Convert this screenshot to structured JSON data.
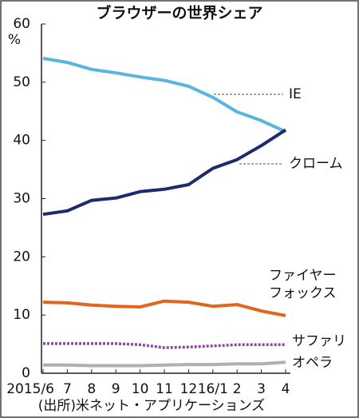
{
  "chart_data": {
    "type": "line",
    "title": "ブラウザーの世界シェア",
    "y_unit": "%",
    "source": "(出所)米ネット・アプリケーションズ",
    "categories": [
      "2015/6",
      "7",
      "8",
      "9",
      "10",
      "11",
      "12",
      "16/1",
      "2",
      "3",
      "4"
    ],
    "series": [
      {
        "name": "IE",
        "color": "#5ab4e0",
        "values": [
          54.1,
          53.4,
          52.2,
          51.6,
          50.9,
          50.3,
          49.3,
          47.4,
          44.9,
          43.4,
          41.5
        ]
      },
      {
        "name": "クローム",
        "color": "#1c2a6e",
        "values": [
          27.3,
          27.9,
          29.7,
          30.1,
          31.2,
          31.6,
          32.4,
          35.2,
          36.7,
          39.1,
          41.8
        ]
      },
      {
        "name": "ファイヤーフォックス",
        "color": "#e0661e",
        "values": [
          12.2,
          12.1,
          11.7,
          11.5,
          11.4,
          12.4,
          12.2,
          11.5,
          11.8,
          10.7,
          9.9
        ]
      },
      {
        "name": "サファリ",
        "color": "#8a4a9e",
        "dotted": true,
        "values": [
          5.1,
          5.1,
          5.1,
          5.1,
          4.9,
          4.4,
          4.5,
          4.7,
          4.9,
          4.9,
          4.9
        ]
      },
      {
        "name": "オペラ",
        "color": "#b0b0b0",
        "values": [
          1.4,
          1.4,
          1.3,
          1.3,
          1.3,
          1.4,
          1.5,
          1.5,
          1.6,
          1.6,
          1.9
        ]
      }
    ],
    "ylim": [
      0,
      60
    ],
    "yticks": [
      0,
      10,
      20,
      30,
      40,
      50,
      60
    ]
  }
}
